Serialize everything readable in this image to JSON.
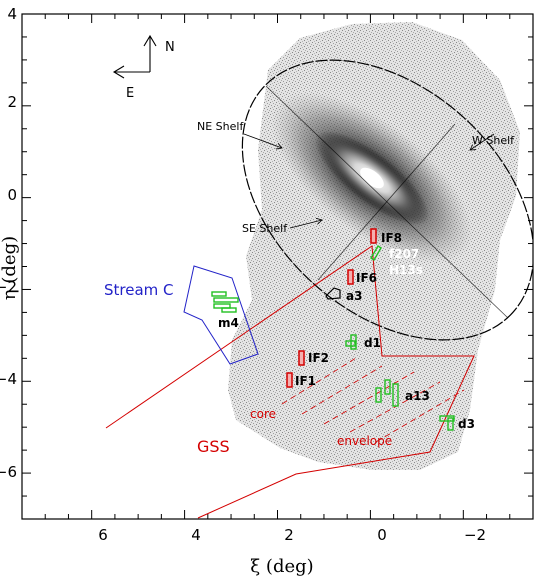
{
  "axes": {
    "x_label": "ξ (deg)",
    "y_label": "η (deg)",
    "x_ticks": [
      "6",
      "4",
      "2",
      "0",
      "−2"
    ],
    "y_ticks": [
      "4",
      "2",
      "0",
      "−2",
      "−4",
      "−6"
    ],
    "x_range": [
      7.5,
      -3.5
    ],
    "y_range": [
      -7,
      4
    ]
  },
  "compass": {
    "north": "N",
    "east": "E"
  },
  "shelves": {
    "ne": "NE Shelf",
    "w": "W Shelf",
    "se": "SE Shelf"
  },
  "fields": {
    "if8": "IF8",
    "f207": "f207",
    "h13s": "H13s",
    "if6": "IF6",
    "a3": "a3",
    "m4": "m4",
    "d1": "d1",
    "if2": "IF2",
    "if1": "IF1",
    "a13": "a13",
    "d3": "d3"
  },
  "regions": {
    "stream_c": "Stream C",
    "gss": "GSS",
    "core": "core",
    "envelope": "envelope"
  },
  "colors": {
    "stream": "#2323c8",
    "gss": "#d40000",
    "green_fields": "#22c022",
    "red_fields": "#d40000"
  }
}
